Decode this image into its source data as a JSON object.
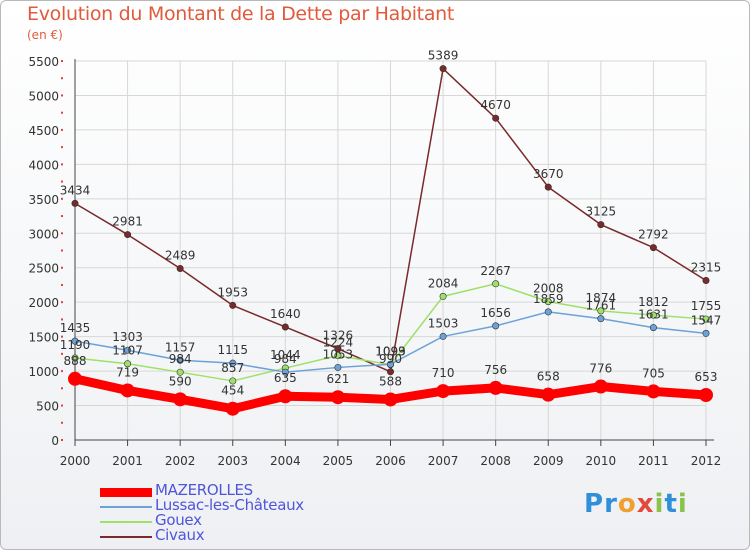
{
  "title": "Evolution du Montant de la Dette par Habitant",
  "unit": "(en €)",
  "logo": {
    "text": "Proxiti",
    "colors": [
      "#2f8fd8",
      "#2f8fd8",
      "#f0a030",
      "#e24a3b",
      "#8bc34a",
      "#2f8fd8",
      "#8bc34a"
    ]
  },
  "chart_data": {
    "type": "line",
    "x": [
      "2000",
      "2001",
      "2002",
      "2003",
      "2004",
      "2005",
      "2006",
      "2007",
      "2008",
      "2009",
      "2010",
      "2011",
      "2012"
    ],
    "ylim": [
      0,
      5500
    ],
    "yticks": [
      0,
      500,
      1000,
      1500,
      2000,
      2500,
      3000,
      3500,
      4000,
      4500,
      5000,
      5500
    ],
    "grid": true,
    "legend_position": "bottom-left",
    "series": [
      {
        "name": "MAZEROLLES",
        "color": "#ff0000",
        "width": 9,
        "values": [
          888,
          719,
          590,
          454,
          635,
          621,
          588,
          710,
          756,
          658,
          776,
          705,
          653
        ]
      },
      {
        "name": "Lussac-les-Châteaux",
        "color": "#6ba2d8",
        "width": 1.5,
        "values": [
          1435,
          1303,
          1157,
          1115,
          984,
          1053,
          1099,
          1503,
          1656,
          1859,
          1761,
          1631,
          1547
        ]
      },
      {
        "name": "Gouex",
        "color": "#9ee068",
        "width": 1.5,
        "values": [
          1190,
          1107,
          984,
          857,
          1044,
          1224,
          1093,
          2084,
          2267,
          2008,
          1874,
          1812,
          1755
        ]
      },
      {
        "name": "Civaux",
        "color": "#7a2a2a",
        "width": 1.5,
        "values": [
          3434,
          2981,
          2489,
          1953,
          1640,
          1326,
          990,
          5389,
          4670,
          3670,
          3125,
          2792,
          2315
        ]
      }
    ]
  }
}
